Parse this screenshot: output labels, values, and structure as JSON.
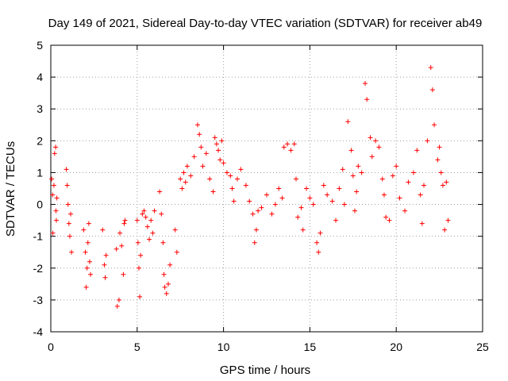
{
  "chart_data": {
    "type": "scatter",
    "title": "Day 149 of 2021, Sidereal Day-to-day VTEC variation (SDTVAR) for receiver ab49",
    "xlabel": "GPS time / hours",
    "ylabel": "SDTVAR / TECUs",
    "xlim": [
      0,
      25
    ],
    "ylim": [
      -4,
      5
    ],
    "x_ticks": [
      0,
      5,
      10,
      15,
      20,
      25
    ],
    "x_tick_labels": [
      "0",
      "5",
      "10",
      "15",
      "20",
      "25"
    ],
    "y_ticks": [
      -4,
      -3,
      -2,
      -1,
      0,
      1,
      2,
      3,
      4,
      5
    ],
    "y_tick_labels": [
      "-4",
      "-3",
      "-2",
      "-1",
      "0",
      "1",
      "2",
      "3",
      "4",
      "5"
    ],
    "grid": true,
    "marker": "plus",
    "series": [
      {
        "name": "SDTVAR",
        "color": "#ff0000",
        "points": [
          [
            0.05,
            0.8
          ],
          [
            0.1,
            0.3
          ],
          [
            0.12,
            -0.9
          ],
          [
            0.18,
            0.6
          ],
          [
            0.22,
            1.6
          ],
          [
            0.28,
            1.8
          ],
          [
            0.3,
            -0.2
          ],
          [
            0.32,
            -0.5
          ],
          [
            0.35,
            0.2
          ],
          [
            0.9,
            1.1
          ],
          [
            0.95,
            0.6
          ],
          [
            1.0,
            0.0
          ],
          [
            1.05,
            -0.6
          ],
          [
            1.1,
            -1.0
          ],
          [
            1.15,
            -0.3
          ],
          [
            1.2,
            -1.5
          ],
          [
            1.9,
            -0.8
          ],
          [
            2.0,
            -1.5
          ],
          [
            2.05,
            -2.6
          ],
          [
            2.1,
            -2.0
          ],
          [
            2.15,
            -1.2
          ],
          [
            2.2,
            -0.6
          ],
          [
            2.25,
            -1.8
          ],
          [
            2.3,
            -2.2
          ],
          [
            3.0,
            -0.8
          ],
          [
            3.1,
            -1.9
          ],
          [
            3.15,
            -2.3
          ],
          [
            3.2,
            -1.6
          ],
          [
            3.8,
            -1.4
          ],
          [
            3.85,
            -3.2
          ],
          [
            3.95,
            -3.0
          ],
          [
            4.0,
            -0.9
          ],
          [
            4.1,
            -1.3
          ],
          [
            4.2,
            -2.2
          ],
          [
            4.25,
            -0.6
          ],
          [
            4.3,
            -0.5
          ],
          [
            5.0,
            -0.5
          ],
          [
            5.05,
            -1.2
          ],
          [
            5.1,
            -2.0
          ],
          [
            5.15,
            -2.9
          ],
          [
            5.2,
            -1.6
          ],
          [
            5.3,
            -0.3
          ],
          [
            5.4,
            -0.2
          ],
          [
            5.5,
            -0.4
          ],
          [
            5.6,
            -0.7
          ],
          [
            5.7,
            -1.1
          ],
          [
            5.8,
            -0.5
          ],
          [
            5.9,
            -0.9
          ],
          [
            6.0,
            -0.2
          ],
          [
            6.3,
            0.4
          ],
          [
            6.4,
            -0.3
          ],
          [
            6.5,
            -1.2
          ],
          [
            6.55,
            -2.2
          ],
          [
            6.6,
            -2.6
          ],
          [
            6.7,
            -2.8
          ],
          [
            6.8,
            -2.5
          ],
          [
            6.9,
            -1.9
          ],
          [
            7.2,
            -0.8
          ],
          [
            7.3,
            -1.5
          ],
          [
            7.5,
            0.8
          ],
          [
            7.6,
            0.5
          ],
          [
            7.7,
            1.0
          ],
          [
            7.8,
            0.7
          ],
          [
            7.9,
            1.2
          ],
          [
            8.1,
            0.9
          ],
          [
            8.3,
            1.5
          ],
          [
            8.5,
            2.5
          ],
          [
            8.6,
            2.2
          ],
          [
            8.7,
            1.8
          ],
          [
            8.8,
            1.2
          ],
          [
            9.0,
            1.6
          ],
          [
            9.2,
            0.8
          ],
          [
            9.4,
            0.4
          ],
          [
            9.5,
            2.1
          ],
          [
            9.6,
            1.9
          ],
          [
            9.7,
            1.7
          ],
          [
            9.8,
            1.4
          ],
          [
            9.9,
            2.0
          ],
          [
            10.0,
            1.3
          ],
          [
            10.2,
            1.0
          ],
          [
            10.4,
            0.9
          ],
          [
            10.5,
            0.5
          ],
          [
            10.6,
            0.1
          ],
          [
            10.8,
            0.8
          ],
          [
            11.0,
            1.1
          ],
          [
            11.3,
            0.6
          ],
          [
            11.5,
            0.1
          ],
          [
            11.7,
            -0.3
          ],
          [
            11.8,
            -1.2
          ],
          [
            11.9,
            -0.8
          ],
          [
            12.0,
            -0.2
          ],
          [
            12.2,
            -0.1
          ],
          [
            12.5,
            0.3
          ],
          [
            12.8,
            -0.3
          ],
          [
            13.0,
            0.0
          ],
          [
            13.2,
            0.5
          ],
          [
            13.4,
            0.2
          ],
          [
            13.5,
            1.8
          ],
          [
            13.7,
            1.9
          ],
          [
            13.9,
            1.7
          ],
          [
            14.1,
            1.9
          ],
          [
            14.2,
            0.8
          ],
          [
            14.3,
            -0.4
          ],
          [
            14.5,
            -0.1
          ],
          [
            14.6,
            -0.8
          ],
          [
            14.8,
            0.5
          ],
          [
            15.0,
            0.2
          ],
          [
            15.2,
            0.0
          ],
          [
            15.4,
            -1.2
          ],
          [
            15.5,
            -1.5
          ],
          [
            15.6,
            -0.9
          ],
          [
            15.8,
            0.6
          ],
          [
            16.0,
            0.3
          ],
          [
            16.3,
            0.1
          ],
          [
            16.5,
            -0.5
          ],
          [
            16.7,
            0.5
          ],
          [
            16.9,
            1.1
          ],
          [
            17.0,
            0.0
          ],
          [
            17.2,
            2.6
          ],
          [
            17.4,
            1.7
          ],
          [
            17.5,
            0.9
          ],
          [
            17.6,
            -0.2
          ],
          [
            17.7,
            0.4
          ],
          [
            17.8,
            1.2
          ],
          [
            18.0,
            1.0
          ],
          [
            18.2,
            3.8
          ],
          [
            18.3,
            3.3
          ],
          [
            18.5,
            2.1
          ],
          [
            18.6,
            1.5
          ],
          [
            18.8,
            2.0
          ],
          [
            19.0,
            1.8
          ],
          [
            19.2,
            0.8
          ],
          [
            19.3,
            0.3
          ],
          [
            19.4,
            -0.4
          ],
          [
            19.6,
            -0.5
          ],
          [
            19.8,
            0.9
          ],
          [
            20.0,
            1.2
          ],
          [
            20.2,
            0.2
          ],
          [
            20.5,
            -0.2
          ],
          [
            20.7,
            0.7
          ],
          [
            21.0,
            1.0
          ],
          [
            21.2,
            1.7
          ],
          [
            21.4,
            0.3
          ],
          [
            21.5,
            -0.6
          ],
          [
            21.6,
            0.6
          ],
          [
            21.8,
            2.0
          ],
          [
            22.0,
            4.3
          ],
          [
            22.1,
            3.6
          ],
          [
            22.2,
            2.5
          ],
          [
            22.4,
            1.4
          ],
          [
            22.5,
            1.8
          ],
          [
            22.6,
            1.0
          ],
          [
            22.7,
            0.6
          ],
          [
            22.8,
            -0.8
          ],
          [
            22.9,
            0.7
          ],
          [
            23.0,
            -0.5
          ]
        ]
      }
    ]
  }
}
